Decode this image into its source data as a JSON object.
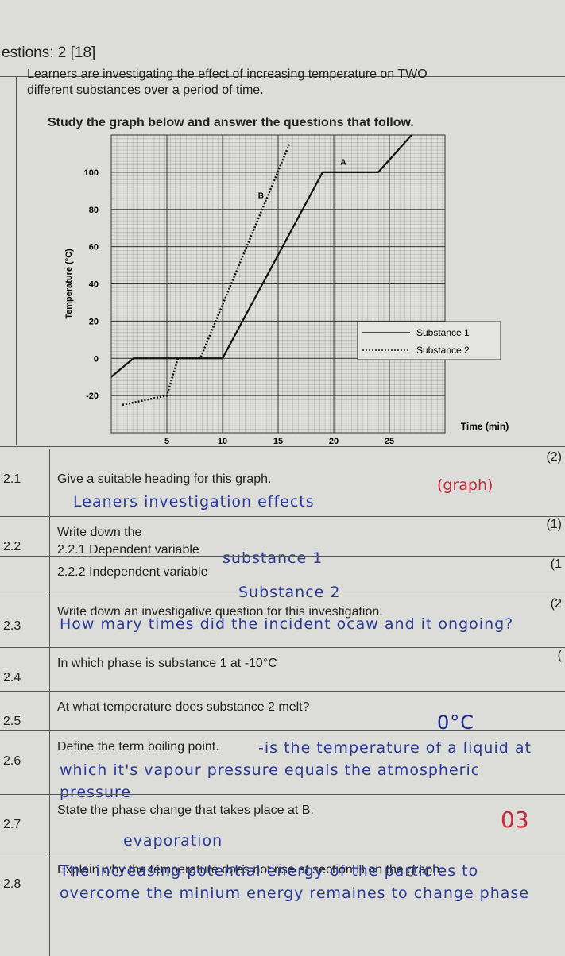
{
  "header": "estions: 2 [18]",
  "intro": [
    "Learners are investigating the effect of increasing temperature on TWO",
    "different substances over a period of time."
  ],
  "instruction": "Study the graph below and answer the questions that follow.",
  "chart_data": {
    "type": "line",
    "xlabel": "Time (min)",
    "ylabel": "Temperature (°C)",
    "xlim": [
      0,
      30
    ],
    "ylim": [
      -40,
      120
    ],
    "xticks": [
      5,
      10,
      15,
      20,
      25
    ],
    "yticks": [
      -20,
      0,
      20,
      40,
      60,
      80,
      100
    ],
    "grid": true,
    "legend": "lower right",
    "series": [
      {
        "name": "Substance 1",
        "color": "#111111",
        "style": "solid",
        "x": [
          0,
          2,
          10,
          19,
          24,
          27
        ],
        "values": [
          -10,
          0,
          0,
          100,
          100,
          120
        ]
      },
      {
        "name": "Substance 2",
        "color": "#111111",
        "style": "dotted",
        "x": [
          1,
          5,
          6,
          8,
          16
        ],
        "values": [
          -25,
          -20,
          0,
          0,
          115
        ]
      }
    ],
    "annotations": [
      {
        "text": "A",
        "x": 20.6,
        "y": 104
      },
      {
        "text": "B",
        "x": 13.2,
        "y": 86
      }
    ]
  },
  "questions": [
    {
      "number": "2.1",
      "text": "Give a suitable heading for this graph.",
      "marks": "(2)",
      "answer": "Leaners investigation effects",
      "note": "(graph)"
    },
    {
      "number": "2.2",
      "text": "Write down the",
      "marks": "(1)"
    },
    {
      "text": "2.2.1 Dependent variable",
      "answer": "substance 1"
    },
    {
      "text": "2.2.2 Independent variable",
      "marks": "(1",
      "answer": "Substance 2"
    },
    {
      "number": "2.3",
      "text": "Write down an investigative question for this investigation.",
      "marks": "(2",
      "answer": "How mary times did the incident ocaw and it ongoing?"
    },
    {
      "number": "2.4",
      "text": "In which phase is substance 1 at -10°C",
      "marks": "("
    },
    {
      "number": "2.5",
      "text": "At what temperature does substance 2 melt?",
      "answer": "0°C"
    },
    {
      "number": "2.6",
      "text": "Define the term boiling point.",
      "answer": "-is the temperature of a liquid at which it's vapour pressure equals the atmospheric pressure"
    },
    {
      "number": "2.7",
      "text": "State the phase change that takes place at B.",
      "answer": "evaporation",
      "note": "03"
    },
    {
      "number": "2.8",
      "text": "Explain why the temperature does not rise at section B on the graph.",
      "answer": "The increasing potential energy of the particles to overcome the minium energy remaines to change phase"
    }
  ]
}
